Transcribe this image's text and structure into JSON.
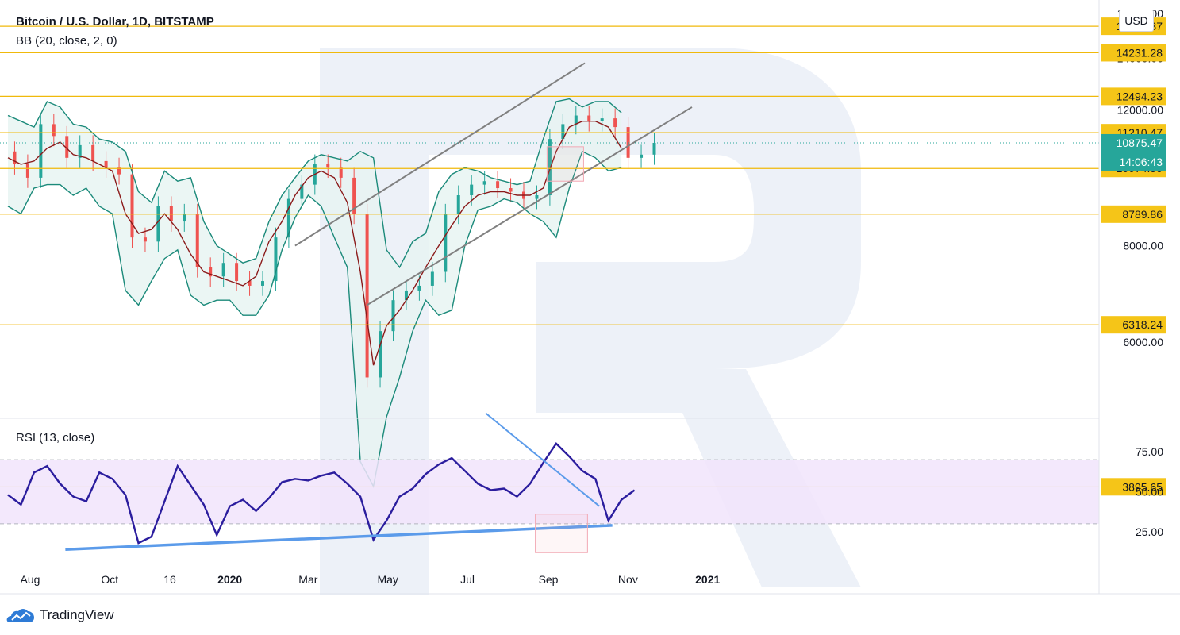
{
  "header": {
    "symbol_title": "Bitcoin / U.S. Dollar, 1D, BITSTAMP",
    "indicator_bb": "BB (20, close, 2, 0)",
    "indicator_rsi": "RSI (13, close)",
    "currency": "USD"
  },
  "branding": {
    "name": "TradingView"
  },
  "colors": {
    "level_line": "#f0b90b",
    "level_label_bg": "#f5c518",
    "price_label_bg": "#26a69a",
    "bollinger_band": "#1b8a7a",
    "bb_fill": "#e6f4f1",
    "moving_average": "#8b1a1a",
    "channel_line": "#808080",
    "rsi_line": "#2b1d9e",
    "rsi_band_fill": "#f1e4fb",
    "rsi_trend_line": "#5b9bea",
    "highlight_box": "#f2a9b4",
    "candle_up": "#26a69a",
    "candle_down": "#ef5350"
  },
  "chart_data": [
    {
      "type": "candlestick",
      "title": "Bitcoin / U.S. Dollar, 1D, BITSTAMP",
      "x_ticks": [
        "Aug",
        "Oct",
        "16",
        "2020",
        "Mar",
        "May",
        "Jul",
        "Sep",
        "Nov",
        "2021"
      ],
      "y_ticks": [
        16000,
        14000,
        12000,
        10000,
        8000,
        6000
      ],
      "y_tick_labels": [
        "16000.00",
        "14000.00",
        "12000.00",
        "10000.00",
        "8000.00",
        "6000.00"
      ],
      "ylim": [
        3500,
        16200
      ],
      "grid": false,
      "levels": [
        15400.37,
        14231.28,
        12494.23,
        11210.47,
        10074.99,
        8789.86,
        6318.24,
        3895.65
      ],
      "level_labels": [
        "15400.37",
        "14231.28",
        "12494.23",
        "11210.47",
        "10074.99",
        "8789.86",
        "6318.24",
        "3895.65"
      ],
      "last_price": 10875.47,
      "last_price_label": "10875.47",
      "countdown": "14:06:43",
      "close_series": {
        "start": "2019-07-15",
        "step_days": 10,
        "values": [
          10600,
          10200,
          9800,
          11500,
          11100,
          10400,
          10800,
          10300,
          10100,
          9900,
          8200,
          8100,
          9000,
          8600,
          8800,
          7500,
          7300,
          7600,
          7200,
          7100,
          7200,
          8200,
          9200,
          9600,
          10200,
          10100,
          9800,
          8800,
          5400,
          6200,
          6800,
          7000,
          7100,
          7400,
          8800,
          9300,
          9600,
          9700,
          9500,
          9400,
          9200,
          9300,
          11000,
          11500,
          11800,
          11600,
          11700,
          11400,
          10400,
          10500,
          10875
        ]
      },
      "bollinger_upper": [
        11800,
        11600,
        11400,
        12300,
        12100,
        11500,
        11400,
        11000,
        10900,
        10600,
        9400,
        9100,
        10000,
        9700,
        9800,
        8600,
        8000,
        7800,
        7600,
        7700,
        8600,
        9300,
        9800,
        10300,
        10500,
        10400,
        10300,
        10600,
        10400,
        7900,
        7500,
        8100,
        8300,
        9400,
        9900,
        10100,
        10000,
        9800,
        9700,
        9600,
        9700,
        11000,
        12300,
        12400,
        12100,
        12300,
        12300,
        11900
      ],
      "bollinger_lower": [
        9000,
        8800,
        9500,
        9600,
        9600,
        9300,
        9500,
        9000,
        8800,
        7000,
        6700,
        7200,
        7700,
        7900,
        6900,
        6700,
        6800,
        6800,
        6500,
        6500,
        6900,
        7900,
        8700,
        9300,
        9000,
        8200,
        7500,
        4200,
        3900,
        4800,
        5400,
        6200,
        6800,
        6500,
        6600,
        8000,
        8900,
        9000,
        9200,
        9100,
        8800,
        8600,
        8200,
        9500,
        10600,
        10400,
        10000,
        10100
      ],
      "moving_average": [
        10400,
        10200,
        10300,
        10700,
        10900,
        10500,
        10400,
        10200,
        10000,
        8800,
        8300,
        8400,
        8800,
        8400,
        7800,
        7400,
        7300,
        7200,
        7100,
        7300,
        8100,
        8600,
        9300,
        9800,
        10000,
        9800,
        9100,
        7400,
        5600,
        6300,
        6600,
        7000,
        7500,
        8000,
        8500,
        9000,
        9300,
        9400,
        9400,
        9300,
        9300,
        9500,
        10600,
        11400,
        11600,
        11600,
        11400,
        10700
      ],
      "channel_lines": [
        {
          "from": [
            "2020-02-20",
            8000
          ],
          "to": [
            "2020-09-29",
            13800
          ]
        },
        {
          "from": [
            "2020-04-15",
            6700
          ],
          "to": [
            "2020-12-20",
            12100
          ]
        }
      ],
      "highlight_box": {
        "from_date": "2020-08-31",
        "to_date": "2020-09-28",
        "price_from": 9700,
        "price_to": 10750
      }
    },
    {
      "type": "line",
      "title": "RSI (13, close)",
      "y_ticks": [
        75,
        50,
        25
      ],
      "y_tick_labels": [
        "75.00",
        "50.00",
        "25.00"
      ],
      "ylim": [
        0,
        100
      ],
      "band": [
        30,
        70
      ],
      "values": [
        48,
        42,
        62,
        66,
        55,
        47,
        44,
        62,
        58,
        48,
        18,
        22,
        44,
        66,
        54,
        42,
        23,
        41,
        45,
        38,
        46,
        56,
        58,
        57,
        60,
        62,
        55,
        47,
        20,
        32,
        47,
        52,
        61,
        67,
        71,
        63,
        55,
        51,
        52,
        47,
        55,
        68,
        80,
        72,
        63,
        58,
        32,
        45,
        51
      ],
      "trendlines": [
        {
          "from": [
            "2019-08-28",
            14
          ],
          "to": [
            "2020-10-20",
            29
          ]
        },
        {
          "from": [
            "2020-07-15",
            99
          ],
          "to": [
            "2020-10-10",
            41
          ]
        }
      ],
      "highlight_box": {
        "from_date": "2020-08-22",
        "to_date": "2020-10-01",
        "value_from": 12,
        "value_to": 36
      }
    }
  ]
}
